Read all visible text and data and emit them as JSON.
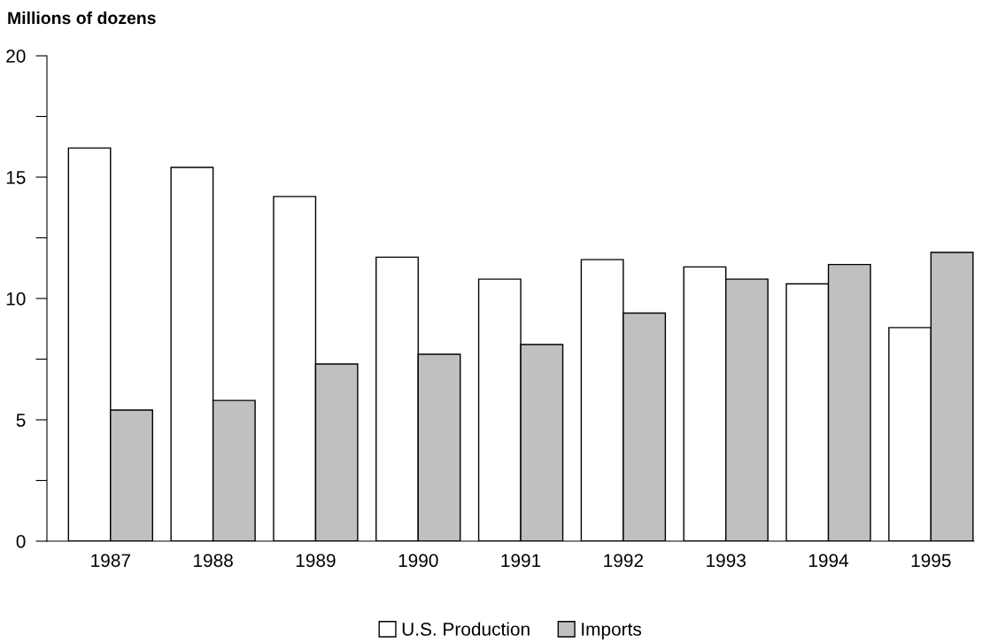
{
  "chart_data": {
    "type": "bar",
    "title": "Millions of dozens",
    "categories": [
      "1987",
      "1988",
      "1989",
      "1990",
      "1991",
      "1992",
      "1993",
      "1994",
      "1995"
    ],
    "series": [
      {
        "name": "U.S. Production",
        "color": "#ffffff",
        "values": [
          16.2,
          15.4,
          14.2,
          11.7,
          10.8,
          11.6,
          11.3,
          10.6,
          8.8
        ]
      },
      {
        "name": "Imports",
        "color": "#c0c0c0",
        "values": [
          5.4,
          5.8,
          7.3,
          7.7,
          8.1,
          9.4,
          10.8,
          11.4,
          11.9
        ]
      }
    ],
    "ylim": [
      0,
      20
    ],
    "yticks": [
      0,
      {
        "value": 2.5,
        "label": null
      },
      5,
      {
        "value": 7.5,
        "label": null
      },
      10,
      {
        "value": 12.5,
        "label": null
      },
      15,
      {
        "value": 17.5,
        "label": null
      },
      20
    ],
    "grid": false,
    "legend": "bottom"
  }
}
